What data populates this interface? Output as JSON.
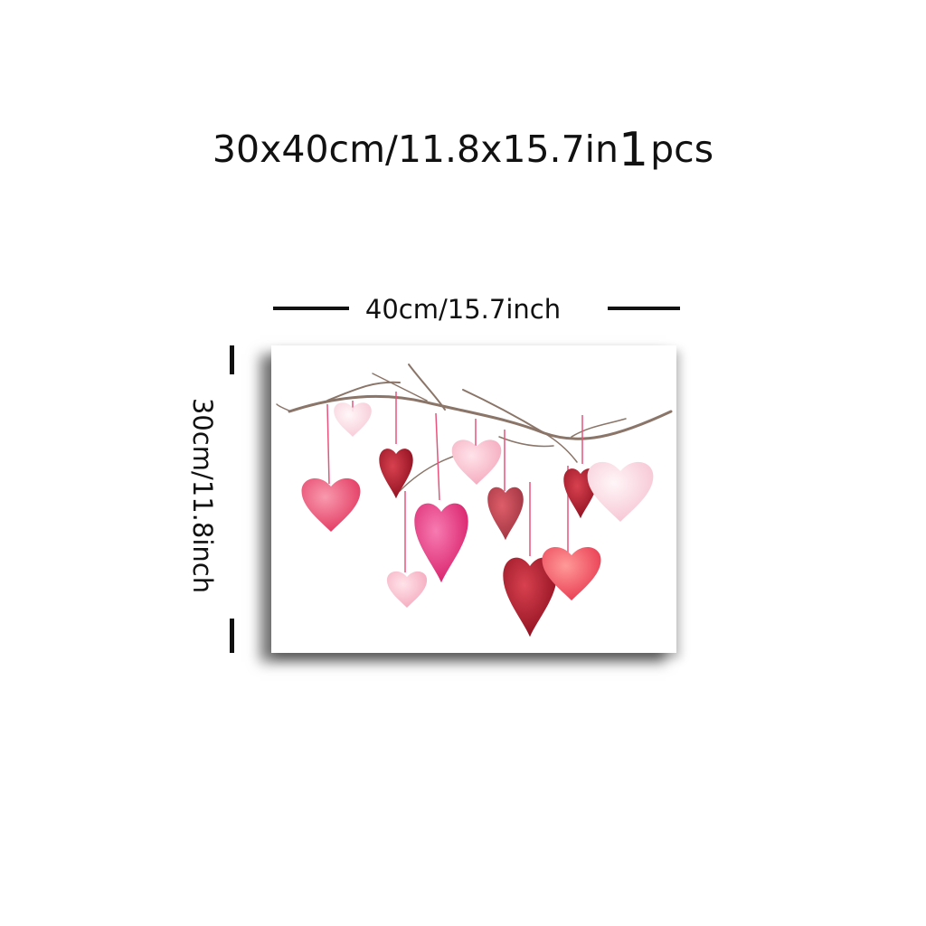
{
  "title": {
    "size_text": "30x40cm/11.8x15.7in",
    "quantity": "1",
    "unit": "pcs"
  },
  "dimensions": {
    "width_label": "40cm/15.7inch",
    "height_label": "30cm/11.8inch"
  },
  "artwork": {
    "subject": "watercolor hanging hearts on branch",
    "colors": {
      "branch": "#8a7568",
      "ribbon": "#e7537c",
      "pink": "#ec4f78",
      "light_pink": "#f7b7c9",
      "red": "#b01a2a",
      "magenta": "#e0307a",
      "coral": "#f05a66"
    }
  }
}
